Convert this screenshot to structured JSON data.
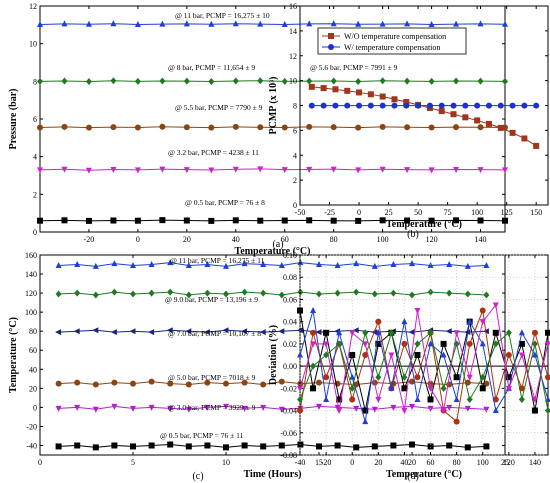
{
  "chart_data": [
    {
      "id": "a",
      "type": "line",
      "panel_label": "(a)",
      "xlabel": "Temperature (°C)",
      "ylabel": "Pressure (bar)",
      "xlim": [
        -40,
        150
      ],
      "ylim": [
        0,
        12
      ],
      "xticks": [
        -20,
        0,
        20,
        40,
        60,
        80,
        100,
        120,
        140
      ],
      "yticks": [
        0,
        2,
        4,
        6,
        8,
        10,
        12
      ],
      "annotations": [
        {
          "text": "@ 11 bar, PCMP = 16,275 ± 10"
        },
        {
          "text": "@ 8 bar, PCMP = 11,654 ± 9"
        },
        {
          "text": "@ 5.5 bar, PCMP = 7790 ± 9"
        },
        {
          "text": "@ 3.2 bar, PCMP = 4238 ± 11"
        },
        {
          "text": "@ 0.5 bar, PCMP = 76 ± 8"
        }
      ],
      "x": [
        -40,
        -30,
        -20,
        -10,
        0,
        10,
        20,
        30,
        40,
        50,
        60,
        70,
        80,
        90,
        100,
        110,
        120,
        130,
        140,
        150
      ],
      "series": [
        {
          "level": 11,
          "color": "#1f3fd6",
          "marker": "triangle",
          "values": [
            11.02,
            11.05,
            11.03,
            11.06,
            11.02,
            11.04,
            11.05,
            11.03,
            11.06,
            11.04,
            11.02,
            11.05,
            11.06,
            11.03,
            11.04,
            11.05,
            11.02,
            11.04,
            11.05,
            11.03
          ]
        },
        {
          "level": 8,
          "color": "#1f7a1f",
          "marker": "diamond",
          "values": [
            8.0,
            8.02,
            7.99,
            8.03,
            8.0,
            8.02,
            8.01,
            7.99,
            8.02,
            8.03,
            8.0,
            8.01,
            8.02,
            7.99,
            8.03,
            8.01,
            8.0,
            8.02,
            8.01,
            8.0
          ]
        },
        {
          "level": 5.5,
          "color": "#8b4513",
          "marker": "circle",
          "values": [
            5.55,
            5.58,
            5.54,
            5.57,
            5.55,
            5.59,
            5.56,
            5.54,
            5.58,
            5.56,
            5.55,
            5.58,
            5.57,
            5.54,
            5.58,
            5.56,
            5.55,
            5.57,
            5.56,
            5.55
          ]
        },
        {
          "level": 3.2,
          "color": "#d020d0",
          "marker": "triangle-down",
          "values": [
            3.3,
            3.33,
            3.28,
            3.32,
            3.3,
            3.34,
            3.31,
            3.29,
            3.33,
            3.35,
            3.31,
            3.32,
            3.34,
            3.3,
            3.33,
            3.31,
            3.3,
            3.32,
            3.31,
            3.3
          ]
        },
        {
          "level": 0.5,
          "color": "#000000",
          "marker": "square",
          "values": [
            0.6,
            0.62,
            0.59,
            0.61,
            0.6,
            0.63,
            0.61,
            0.59,
            0.62,
            0.6,
            0.61,
            0.62,
            0.6,
            0.59,
            0.62,
            0.61,
            0.6,
            0.62,
            0.61,
            0.6
          ]
        }
      ]
    },
    {
      "id": "b",
      "type": "line",
      "panel_label": "(b)",
      "xlabel": "Temperature (°C)",
      "ylabel": "PCMP (x 10³)",
      "xlim": [
        -50,
        160
      ],
      "ylim": [
        0,
        16
      ],
      "xticks": [
        -50,
        -25,
        0,
        25,
        50,
        75,
        100,
        125,
        150
      ],
      "yticks": [
        0,
        2,
        4,
        6,
        8,
        10,
        12,
        14,
        16
      ],
      "annotation": "@ 5.6 bar, PCMP = 7991 ± 9",
      "legend_position": "top-right",
      "x": [
        -40,
        -30,
        -20,
        -10,
        0,
        10,
        20,
        30,
        40,
        50,
        60,
        70,
        80,
        90,
        100,
        110,
        120,
        130,
        140,
        150
      ],
      "series": [
        {
          "name": "W/O temperature compensation",
          "color": "#a0341c",
          "marker": "square",
          "values": [
            9.5,
            9.4,
            9.3,
            9.18,
            9.05,
            8.9,
            8.72,
            8.5,
            8.28,
            8.05,
            7.8,
            7.55,
            7.3,
            7.05,
            6.8,
            6.52,
            6.2,
            5.8,
            5.35,
            4.75
          ]
        },
        {
          "name": "W/ temperature compensation",
          "color": "#1f2fd6",
          "marker": "circle",
          "values": [
            7.99,
            7.99,
            7.99,
            7.99,
            7.99,
            7.99,
            7.99,
            7.99,
            7.99,
            7.99,
            7.99,
            7.99,
            7.99,
            7.99,
            7.99,
            7.99,
            7.99,
            7.99,
            7.99,
            7.99
          ]
        }
      ]
    },
    {
      "id": "c",
      "type": "line",
      "panel_label": "(c)",
      "xlabel": "Time (Hours)",
      "ylabel": "Temperature (°C)",
      "xlim": [
        0,
        25
      ],
      "ylim": [
        -50,
        160
      ],
      "xticks": [
        0,
        5,
        10,
        15,
        20,
        25
      ],
      "yticks": [
        -40,
        -20,
        0,
        20,
        40,
        60,
        80,
        100,
        120,
        140,
        160
      ],
      "annotations": [
        {
          "text": "@ 11 bar, PCMP = 16,275 ± 11"
        },
        {
          "text": "@ 9.0 bar, PCMP = 13,196 ± 9"
        },
        {
          "text": "@ 7.0 bar, PCMP = 10,107 ± 8"
        },
        {
          "text": "@ 5.0 bar, PCMP = 7018 ± 9"
        },
        {
          "text": "@ 3.0 bar, PCMP = 3929 ± 9"
        },
        {
          "text": "@ 0.5 bar, PCMP = 76 ± 11"
        }
      ],
      "x": [
        1,
        2,
        3,
        4,
        5,
        6,
        7,
        8,
        9,
        10,
        11,
        12,
        13,
        14,
        15,
        16,
        17,
        18,
        19,
        20,
        21,
        22,
        23,
        24
      ],
      "series": [
        {
          "level": 11,
          "color": "#1f3fd6",
          "marker": "triangle",
          "values": [
            149,
            150,
            148,
            151,
            149,
            150,
            152,
            149,
            150,
            148,
            151,
            150,
            149,
            152,
            150,
            149,
            151,
            148,
            150,
            151,
            149,
            150,
            148,
            149
          ]
        },
        {
          "level": 9,
          "color": "#1f7a1f",
          "marker": "diamond",
          "values": [
            119,
            120,
            118,
            121,
            119,
            120,
            121,
            118,
            120,
            119,
            121,
            120,
            118,
            121,
            119,
            120,
            121,
            119,
            120,
            118,
            121,
            120,
            119,
            118
          ]
        },
        {
          "level": 7,
          "color": "#1a237e",
          "marker": "triangle-left",
          "values": [
            79,
            80,
            81,
            79,
            80,
            79,
            81,
            80,
            79,
            81,
            80,
            79,
            80,
            81,
            79,
            80,
            81,
            79,
            80,
            79,
            81,
            80,
            79,
            80
          ]
        },
        {
          "level": 5,
          "color": "#8b4513",
          "marker": "circle",
          "values": [
            25,
            26,
            24,
            26,
            25,
            27,
            25,
            24,
            26,
            25,
            26,
            24,
            27,
            25,
            26,
            25,
            24,
            26,
            25,
            27,
            25,
            24,
            26,
            25
          ]
        },
        {
          "level": 3,
          "color": "#b020d0",
          "marker": "triangle-down",
          "values": [
            -1,
            0,
            -2,
            1,
            -1,
            0,
            -1,
            -2,
            0,
            1,
            -1,
            0,
            -2,
            -1,
            1,
            0,
            -1,
            -2,
            0,
            1,
            -1,
            0,
            -1,
            -2
          ]
        },
        {
          "level": 0.5,
          "color": "#000000",
          "marker": "square",
          "values": [
            -41,
            -40,
            -42,
            -40,
            -41,
            -40,
            -39,
            -41,
            -40,
            -42,
            -40,
            -41,
            -40,
            -39,
            -41,
            -40,
            -42,
            -41,
            -40,
            -39,
            -41,
            -40,
            -42,
            -41
          ]
        }
      ]
    },
    {
      "id": "d",
      "type": "line",
      "panel_label": "(d)",
      "xlabel": "Temperature (°C)",
      "ylabel": "Deviation (%)",
      "xlim": [
        -40,
        150
      ],
      "ylim": [
        -0.08,
        0.1
      ],
      "xticks": [
        -40,
        -20,
        0,
        20,
        40,
        60,
        80,
        100,
        120,
        140
      ],
      "yticks": [
        -0.08,
        -0.06,
        -0.04,
        -0.02,
        0.0,
        0.02,
        0.04,
        0.06,
        0.08,
        0.1
      ],
      "ytick_labels": [
        "-0.08",
        "-0.06",
        "-0.04",
        "-0.02",
        "0.00",
        "0.02",
        "0.04",
        "0.06",
        "0.08",
        "0.10"
      ],
      "x": [
        -40,
        -30,
        -20,
        -10,
        0,
        10,
        20,
        30,
        40,
        50,
        60,
        70,
        80,
        90,
        100,
        110,
        120,
        130,
        140,
        150
      ],
      "series": [
        {
          "color": "#000000",
          "marker": "square",
          "values": [
            0.05,
            -0.02,
            0.03,
            -0.03,
            0.01,
            -0.04,
            0.02,
            0.03,
            -0.02,
            0.01,
            -0.03,
            0.02,
            -0.01,
            0.04,
            -0.02,
            0.03,
            -0.01,
            0.02,
            -0.04,
            0.03
          ]
        },
        {
          "color": "#b03010",
          "marker": "circle",
          "values": [
            -0.04,
            0.03,
            -0.01,
            0.02,
            -0.03,
            0.01,
            0.04,
            -0.02,
            0.02,
            -0.01,
            0.03,
            -0.04,
            -0.05,
            0.02,
            0.05,
            -0.03,
            0.01,
            -0.02,
            0.03,
            -0.01
          ]
        },
        {
          "color": "#1f3fd6",
          "marker": "triangle",
          "values": [
            0.01,
            0.05,
            -0.03,
            0.03,
            -0.01,
            -0.05,
            0.03,
            -0.02,
            0.04,
            -0.03,
            0.02,
            0.01,
            -0.03,
            0.04,
            0.02,
            -0.04,
            -0.02,
            0.03,
            0.01,
            -0.03
          ]
        },
        {
          "color": "#d020d0",
          "marker": "triangle-down",
          "values": [
            -0.02,
            0.02,
            0.02,
            -0.04,
            0.03,
            0.02,
            -0.03,
            0.01,
            -0.04,
            0.05,
            -0.02,
            -0.04,
            0.03,
            -0.01,
            0.04,
            0.055,
            -0.02,
            0.01,
            -0.03,
            0.02
          ]
        },
        {
          "color": "#1f7a1f",
          "marker": "diamond",
          "values": [
            -0.03,
            0.0,
            0.01,
            0.02,
            -0.02,
            0.03,
            -0.01,
            0.03,
            -0.01,
            0.02,
            0.03,
            -0.02,
            0.02,
            -0.03,
            -0.01,
            0.02,
            0.03,
            -0.03,
            0.02,
            -0.04
          ]
        }
      ]
    }
  ]
}
